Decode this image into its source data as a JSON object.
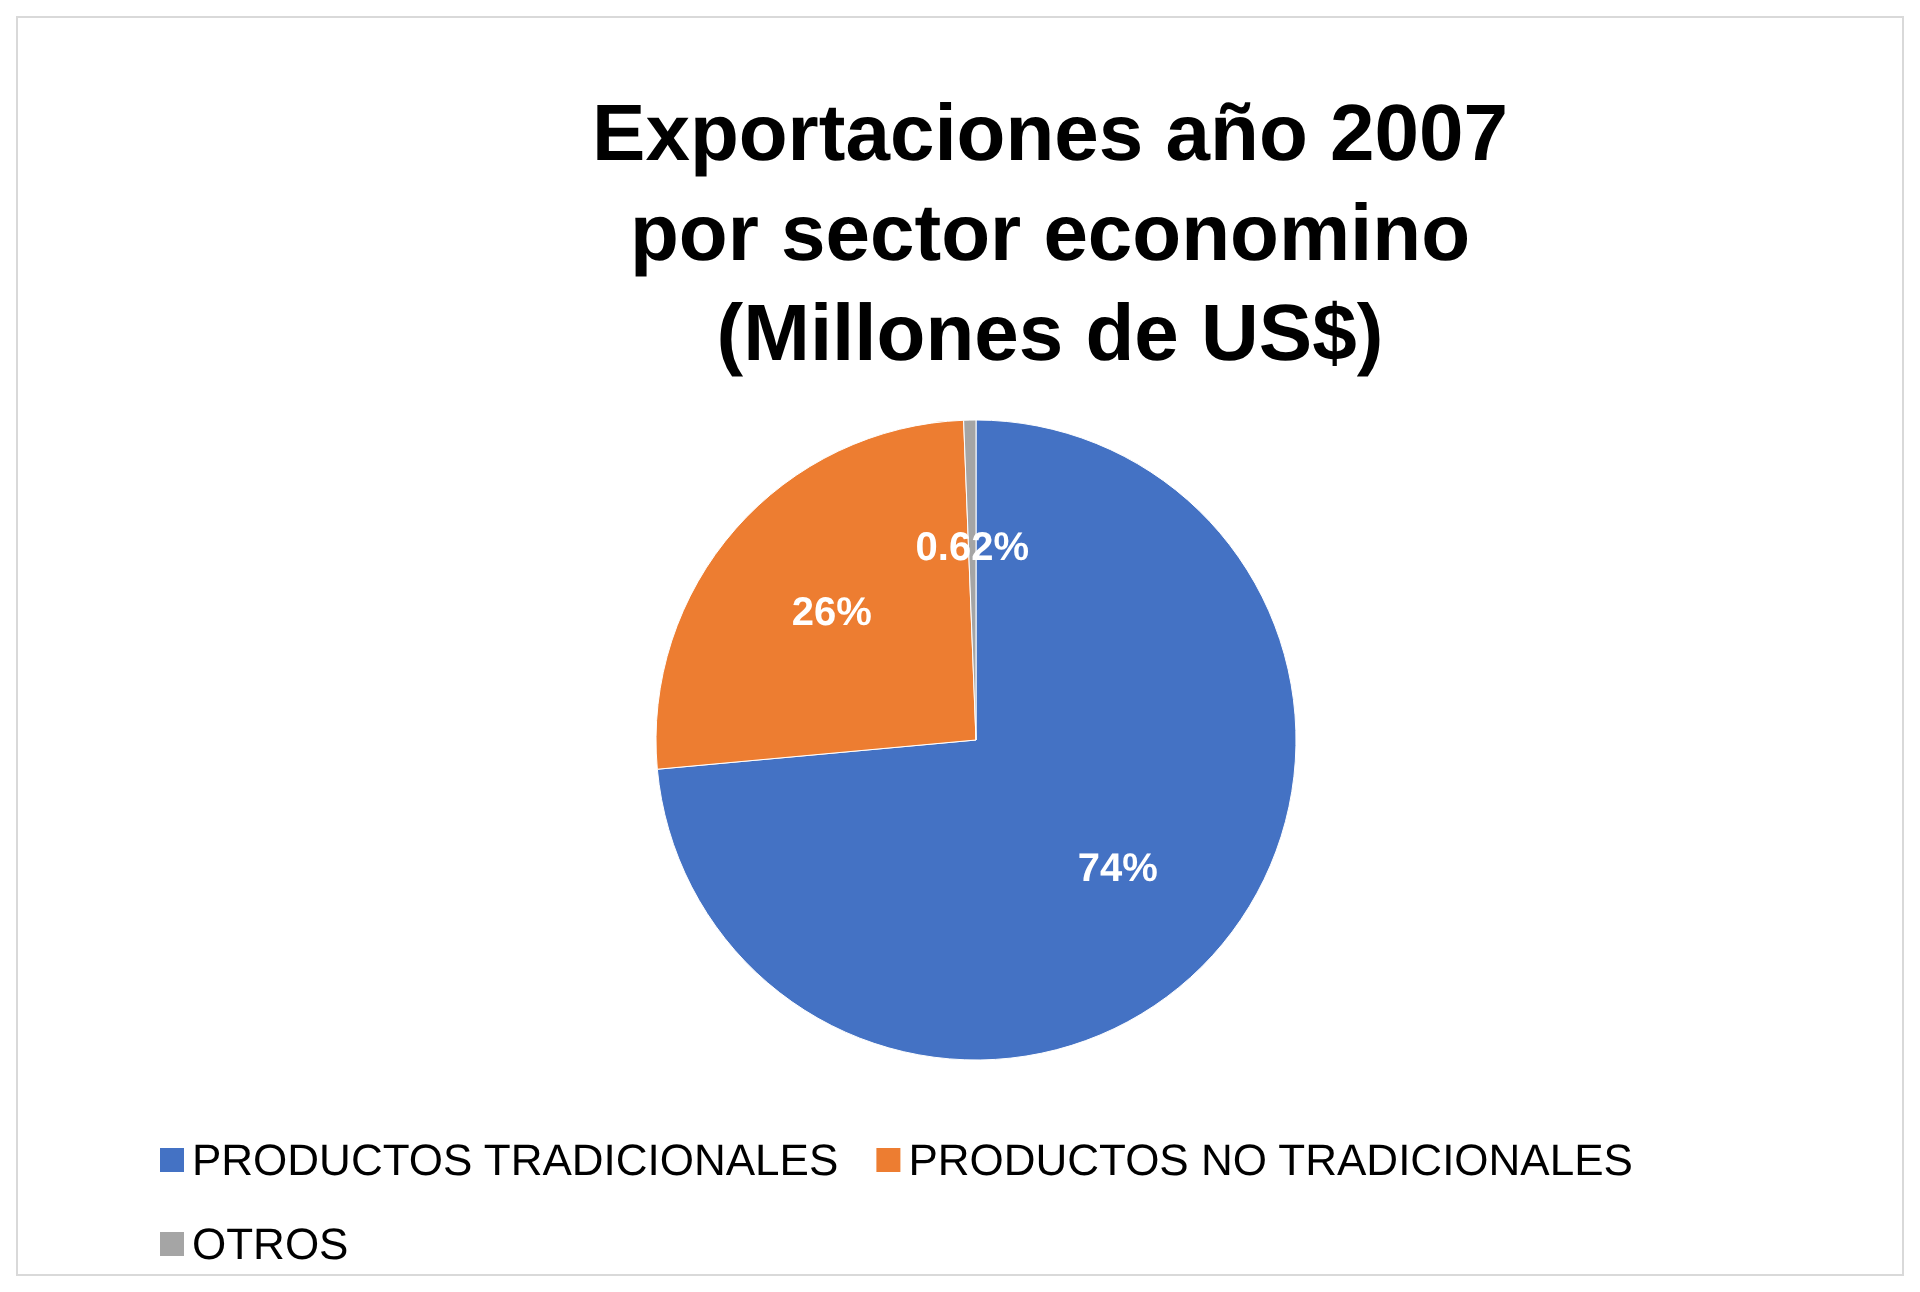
{
  "chart_data": {
    "type": "pie",
    "title": "Exportaciones año 2007\npor sector economino\n(Millones de US$)",
    "categories": [
      "PRODUCTOS TRADICIONALES",
      "PRODUCTOS NO TRADICIONALES",
      "OTROS"
    ],
    "values": [
      74,
      26,
      0.62
    ],
    "colors": [
      "#4472c4",
      "#ed7d31",
      "#a5a5a5"
    ],
    "value_labels": [
      "74%",
      "26%",
      "0.62%"
    ],
    "legend": "bottom"
  }
}
